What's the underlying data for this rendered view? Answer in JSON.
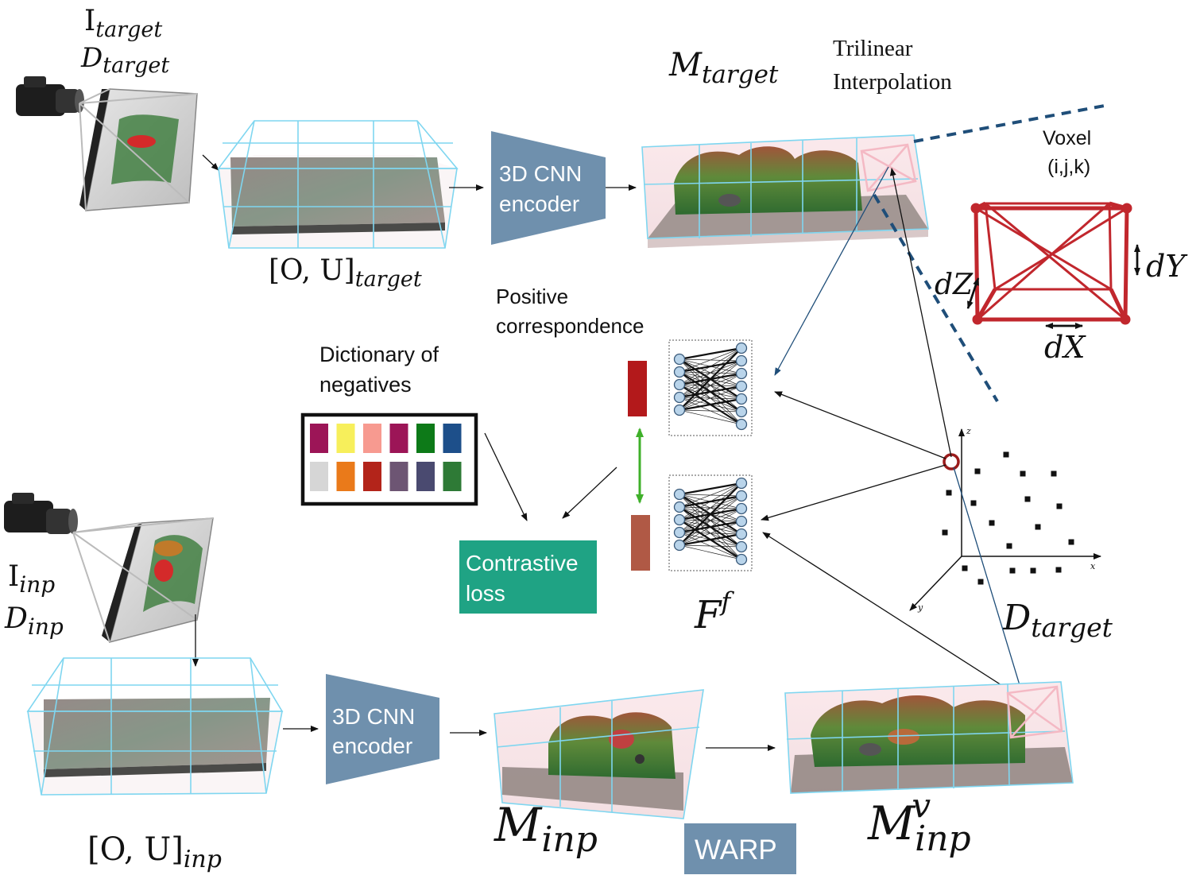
{
  "labels": {
    "i_target": "I",
    "i_target_sub": "target",
    "d_target_top": "D",
    "d_target_top_sub": "target",
    "ou_target": "[O, U]",
    "ou_target_sub": "target",
    "m_target": "M",
    "m_target_sub": "target",
    "trilinear_line1": "Trilinear",
    "trilinear_line2": "Interpolation",
    "voxel_line1": "Voxel",
    "voxel_line2": "(i,j,k)",
    "dy": "dY",
    "dz": "dZ",
    "dx": "dX",
    "encoder_top_line1": "3D CNN",
    "encoder_top_line2": "encoder",
    "positive_line1": "Positive",
    "positive_line2": "correspondence",
    "dictionary_line1": "Dictionary of",
    "dictionary_line2": "negatives",
    "contrastive_line1": "Contrastive",
    "contrastive_line2": "loss",
    "f_main": "F",
    "f_sup": "f",
    "d_target_bottom": "D",
    "d_target_bottom_sub": "target",
    "axis_z": "z",
    "axis_x": "x",
    "axis_y": "y",
    "i_inp": "I",
    "i_inp_sub": "inp",
    "d_inp": "D",
    "d_inp_sub": "inp",
    "encoder_bottom_line1": "3D CNN",
    "encoder_bottom_line2": "encoder",
    "ou_inp": "[O, U]",
    "ou_inp_sub": "inp",
    "m_inp": "M",
    "m_inp_sub": "inp",
    "warp": "WARP",
    "m_inp_v": "M",
    "m_inp_v_sub": "inp",
    "m_inp_v_sup": "v"
  },
  "colors": {
    "encoder": "#6f90ad",
    "contrastive": "#1fa384",
    "warp": "#6f90ad",
    "voxel_red": "#c1272d",
    "embedding_top": "#b3191b",
    "embedding_bottom": "#b05945",
    "positive_arrow": "#3fb02a",
    "dashed_line": "#1f4e79"
  },
  "negatives": {
    "row1": [
      "#9c1557",
      "#f7ef5b",
      "#f79a90",
      "#9c1557",
      "#0d7a18",
      "#1d4f8a"
    ],
    "row2": [
      "#d6d6d6",
      "#ea7a1a",
      "#b3241a",
      "#6d5573",
      "#4a4a70",
      "#2e7a36"
    ]
  }
}
